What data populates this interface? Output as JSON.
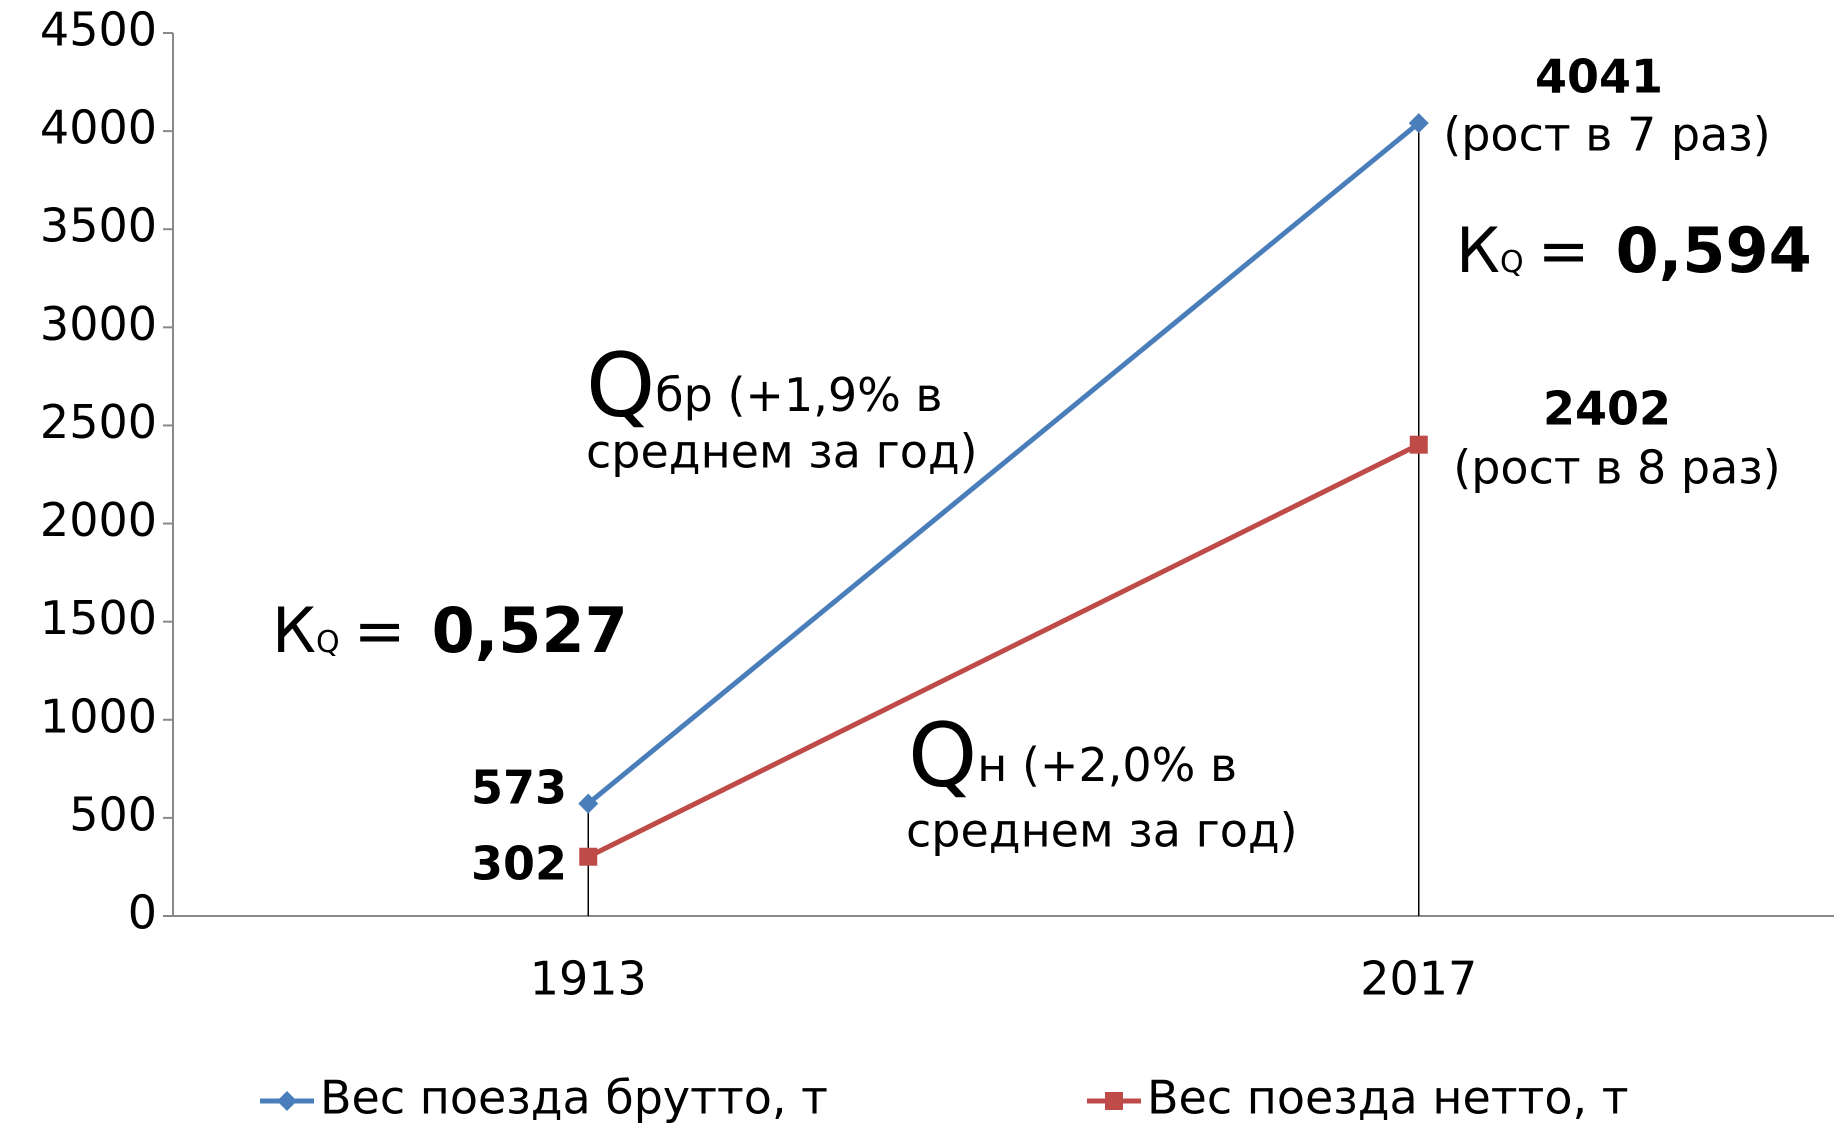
{
  "chart_data": {
    "type": "line",
    "categories": [
      "1913",
      "2017"
    ],
    "series": [
      {
        "name": "Вес поезда брутто, т",
        "color": "#4a7ebb",
        "marker": "diamond",
        "values": [
          573,
          4041
        ]
      },
      {
        "name": "Вес поезда нетто, т",
        "color": "#be4b48",
        "marker": "square",
        "values": [
          302,
          2402
        ]
      }
    ],
    "ylim": [
      0,
      4500
    ],
    "yticks": [
      0,
      500,
      1000,
      1500,
      2000,
      2500,
      3000,
      3500,
      4000,
      4500
    ],
    "drop_lines": true,
    "legend": "bottom",
    "annotations": [
      "(рост в 7 раз)",
      "(рост в 8 раз)",
      "К",
      "Q",
      "=",
      "0,594",
      "К",
      "Q",
      "=",
      "0,527",
      "Q",
      "бр (+1,9% в",
      "среднем за год)",
      "Q",
      "н (+2,0% в",
      "среднем за год)"
    ]
  }
}
